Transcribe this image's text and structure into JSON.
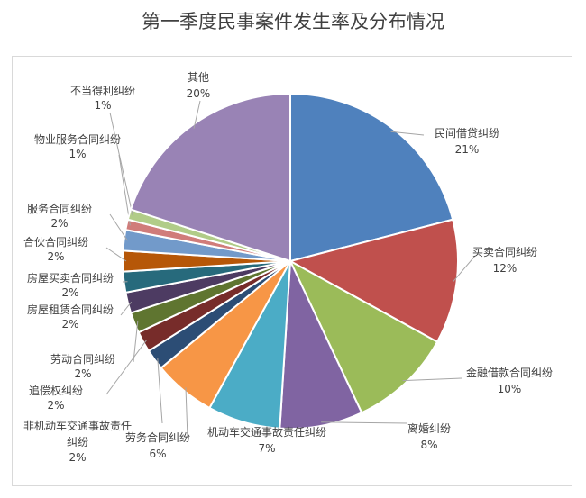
{
  "chart_data": {
    "type": "pie",
    "title": "第一季度民事案件发生率及分布情况",
    "slices": [
      {
        "label": "民间借贷纠纷",
        "value": 21,
        "pct": "21%",
        "color": "#4f81bd"
      },
      {
        "label": "买卖合同纠纷",
        "value": 12,
        "pct": "12%",
        "color": "#c0504d"
      },
      {
        "label": "金融借款合同纠纷",
        "value": 10,
        "pct": "10%",
        "color": "#9bbb59"
      },
      {
        "label": "离婚纠纷",
        "value": 8,
        "pct": "8%",
        "color": "#8064a2"
      },
      {
        "label": "机动车交通事故责任纠纷",
        "value": 7,
        "pct": "7%",
        "color": "#4bacc6"
      },
      {
        "label": "劳务合同纠纷",
        "value": 6,
        "pct": "6%",
        "color": "#f79646"
      },
      {
        "label": "非机动车交通事故责任纠纷",
        "value": 2,
        "pct": "2%",
        "color": "#2c4d75"
      },
      {
        "label": "追偿权纠纷",
        "value": 2,
        "pct": "2%",
        "color": "#772c2a"
      },
      {
        "label": "劳动合同纠纷",
        "value": 2,
        "pct": "2%",
        "color": "#5f7530"
      },
      {
        "label": "房屋租赁合同纠纷",
        "value": 2,
        "pct": "2%",
        "color": "#4d3b62"
      },
      {
        "label": "房屋买卖合同纠纷",
        "value": 2,
        "pct": "2%",
        "color": "#276a7c"
      },
      {
        "label": "合伙合同纠纷",
        "value": 2,
        "pct": "2%",
        "color": "#b65708"
      },
      {
        "label": "服务合同纠纷",
        "value": 2,
        "pct": "2%",
        "color": "#729aca"
      },
      {
        "label": "物业服务合同纠纷",
        "value": 1,
        "pct": "1%",
        "color": "#d07c7a"
      },
      {
        "label": "不当得利纠纷",
        "value": 1,
        "pct": "1%",
        "color": "#b1cc88"
      },
      {
        "label": "其他",
        "value": 20,
        "pct": "20%",
        "color": "#9983b5"
      }
    ]
  }
}
